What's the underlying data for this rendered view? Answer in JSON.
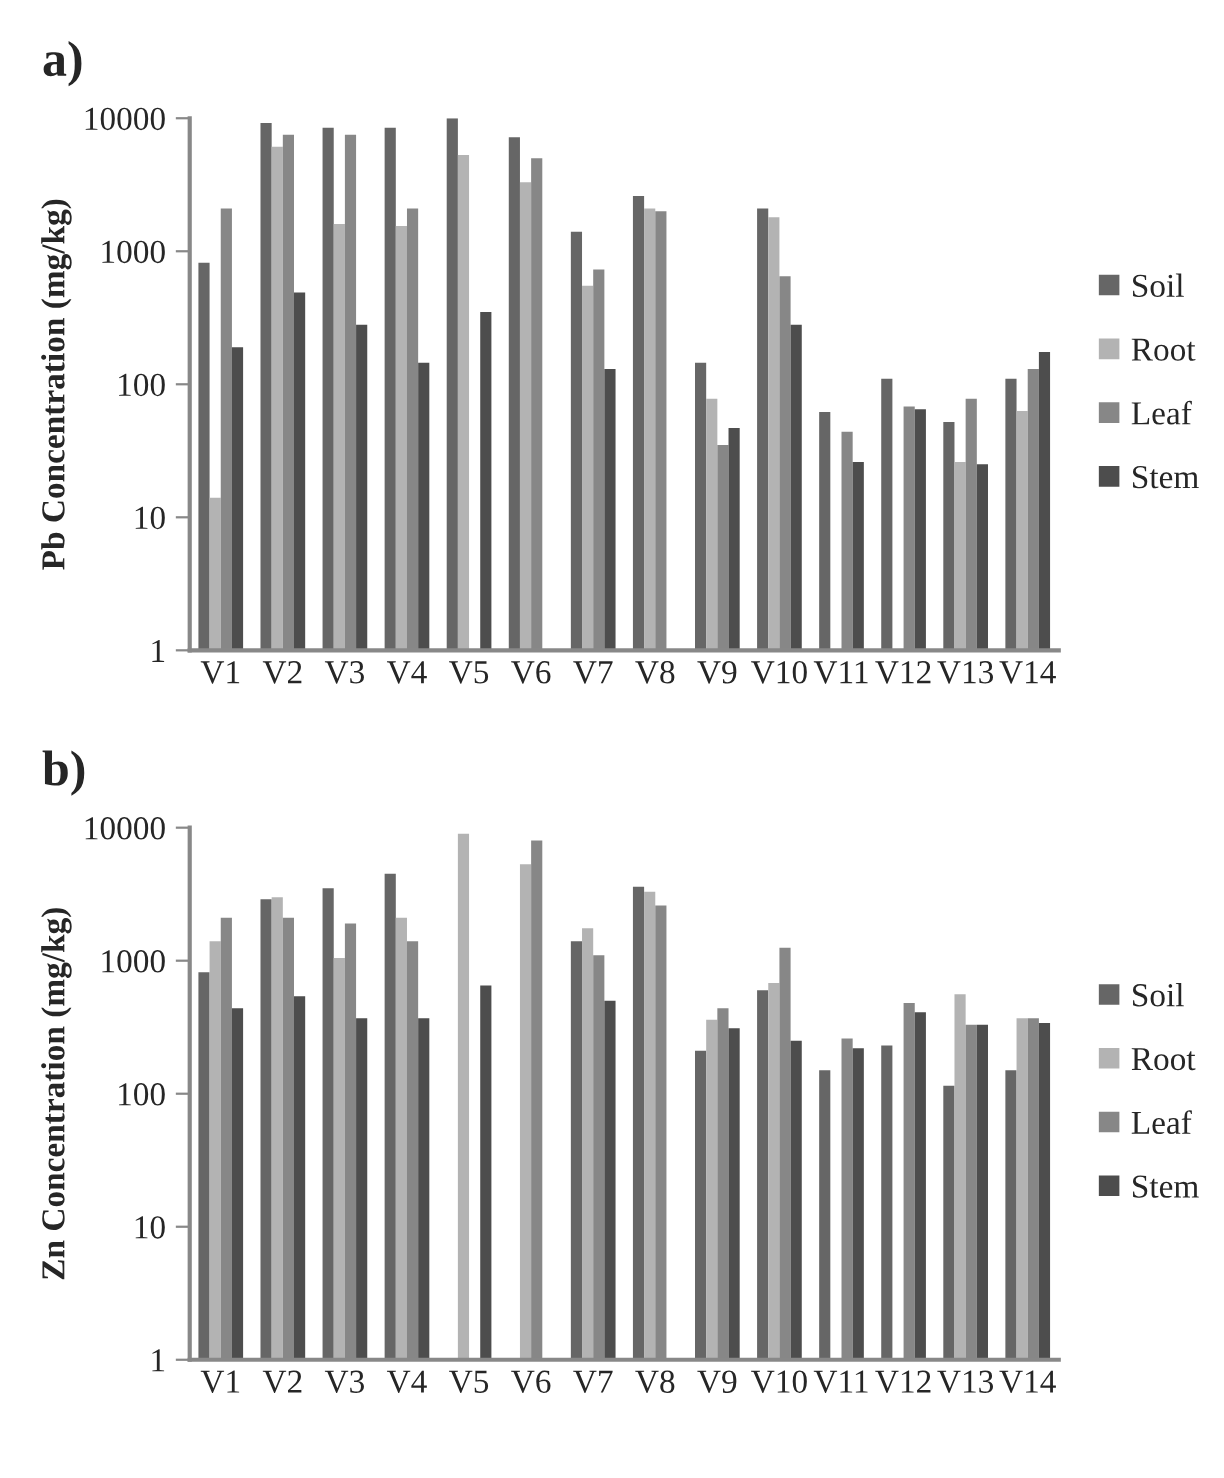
{
  "chart_data": [
    {
      "type": "bar",
      "title": "a)",
      "ylabel": "Pb Concentration (mg/kg)",
      "log": true,
      "ylim": [
        1,
        10000
      ],
      "yticks": [
        1,
        10,
        100,
        1000,
        10000
      ],
      "legend": "right",
      "grid": false,
      "categories": [
        "V1",
        "V2",
        "V3",
        "V4",
        "V5",
        "V6",
        "V7",
        "V8",
        "V9",
        "V10",
        "V11",
        "V12",
        "V13",
        "V14"
      ],
      "series": [
        {
          "name": "Soil",
          "color": "#666666",
          "values": [
            820,
            9200,
            8500,
            8500,
            10000,
            7200,
            1400,
            2600,
            145,
            2100,
            62,
            110,
            52,
            110
          ]
        },
        {
          "name": "Root",
          "color": "#b3b3b3",
          "values": [
            14,
            6100,
            1600,
            1550,
            5300,
            3300,
            550,
            2100,
            78,
            1800,
            null,
            null,
            26,
            63
          ]
        },
        {
          "name": "Leaf",
          "color": "#878787",
          "values": [
            2100,
            7500,
            7500,
            2100,
            null,
            5000,
            730,
            2000,
            35,
            650,
            44,
            68,
            78,
            130
          ]
        },
        {
          "name": "Stem",
          "color": "#4d4d4d",
          "values": [
            190,
            490,
            280,
            145,
            350,
            null,
            130,
            null,
            47,
            280,
            26,
            65,
            25,
            175
          ]
        }
      ]
    },
    {
      "type": "bar",
      "title": "b)",
      "ylabel": "Zn Concentration (mg/kg)",
      "log": true,
      "ylim": [
        1,
        10000
      ],
      "yticks": [
        1,
        10,
        100,
        1000,
        10000
      ],
      "legend": "right",
      "grid": false,
      "categories": [
        "V1",
        "V2",
        "V3",
        "V4",
        "V5",
        "V6",
        "V7",
        "V8",
        "V9",
        "V10",
        "V11",
        "V12",
        "V13",
        "V14"
      ],
      "series": [
        {
          "name": "Soil",
          "color": "#666666",
          "values": [
            820,
            2900,
            3500,
            4500,
            null,
            null,
            1400,
            3600,
            210,
            600,
            150,
            230,
            115,
            150
          ]
        },
        {
          "name": "Root",
          "color": "#b3b3b3",
          "values": [
            1400,
            3000,
            1050,
            2100,
            9000,
            5300,
            1750,
            3300,
            360,
            680,
            null,
            null,
            560,
            370
          ]
        },
        {
          "name": "Leaf",
          "color": "#878787",
          "values": [
            2100,
            2100,
            1900,
            1400,
            null,
            8000,
            1100,
            2600,
            440,
            1250,
            260,
            480,
            330,
            370
          ]
        },
        {
          "name": "Stem",
          "color": "#4d4d4d",
          "values": [
            440,
            540,
            370,
            370,
            650,
            null,
            500,
            null,
            310,
            250,
            220,
            410,
            330,
            340
          ]
        }
      ]
    }
  ]
}
